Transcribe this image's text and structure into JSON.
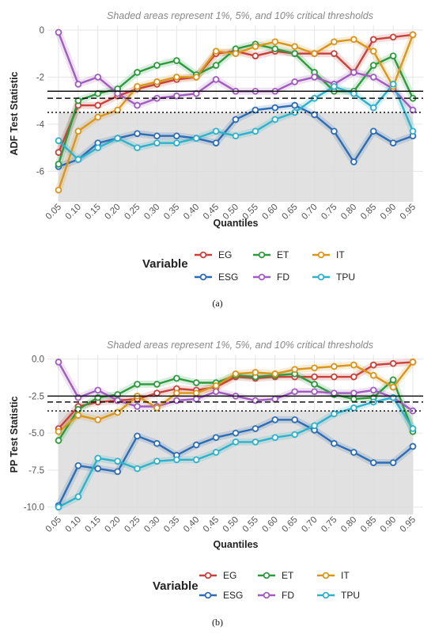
{
  "chart_data": [
    {
      "type": "line",
      "panel_label": "(a)",
      "subtitle": "Shaded areas represent 1%, 5%, and 10% critical thresholds",
      "xlabel": "Quantiles",
      "ylabel": "ADF Test Statistic",
      "x": [
        "0.05",
        "0.10",
        "0.15",
        "0.20",
        "0.25",
        "0.30",
        "0.35",
        "0.40",
        "0.45",
        "0.50",
        "0.55",
        "0.60",
        "0.65",
        "0.70",
        "0.75",
        "0.80",
        "0.85",
        "0.90",
        "0.95"
      ],
      "ylim": [
        -7.3,
        0.2
      ],
      "yticks": [
        -6,
        -4,
        -2,
        0
      ],
      "ytick_labels": [
        "-6",
        "-4",
        "-2",
        "0"
      ],
      "critical_values": [
        -2.6,
        -2.9,
        -3.5
      ],
      "shade_below": -3.5,
      "legend_title": "Variable",
      "grid": true,
      "series": [
        {
          "name": "EG",
          "color": "#C8413B",
          "values": [
            -5.2,
            -3.2,
            -3.2,
            -2.8,
            -2.5,
            -2.3,
            -2.1,
            -2.0,
            -1.0,
            -0.9,
            -1.1,
            -0.9,
            -1.0,
            -1.0,
            -1.0,
            -1.8,
            -0.4,
            -0.3,
            -0.2
          ]
        },
        {
          "name": "ESG",
          "color": "#2E6DB4",
          "values": [
            -5.8,
            -5.5,
            -4.8,
            -4.6,
            -4.4,
            -4.5,
            -4.5,
            -4.6,
            -4.8,
            -3.8,
            -3.4,
            -3.3,
            -3.2,
            -3.6,
            -4.3,
            -5.6,
            -4.3,
            -4.8,
            -4.5
          ]
        },
        {
          "name": "ET",
          "color": "#2E9A3E",
          "values": [
            -5.7,
            -3.0,
            -2.7,
            -2.5,
            -1.8,
            -1.5,
            -1.3,
            -1.9,
            -1.5,
            -0.8,
            -0.6,
            -0.8,
            -1.0,
            -1.8,
            -2.6,
            -2.6,
            -1.5,
            -1.1,
            -2.9
          ]
        },
        {
          "name": "FD",
          "color": "#A05CBF",
          "values": [
            -0.1,
            -2.3,
            -2.0,
            -2.7,
            -3.2,
            -2.9,
            -2.8,
            -2.7,
            -2.1,
            -2.6,
            -2.6,
            -2.6,
            -2.2,
            -2.0,
            -2.3,
            -1.8,
            -2.0,
            -2.5,
            -3.4
          ]
        },
        {
          "name": "IT",
          "color": "#D9961C",
          "values": [
            -6.8,
            -4.3,
            -3.7,
            -3.4,
            -2.4,
            -2.2,
            -2.0,
            -2.0,
            -0.9,
            -1.0,
            -0.7,
            -0.5,
            -0.7,
            -1.0,
            -0.5,
            -0.4,
            -0.9,
            -2.4,
            -0.2
          ]
        },
        {
          "name": "TPU",
          "color": "#2FB1C9",
          "values": [
            -4.7,
            -5.5,
            -5.0,
            -4.6,
            -5.0,
            -4.8,
            -4.8,
            -4.6,
            -4.3,
            -4.5,
            -4.3,
            -3.8,
            -3.5,
            -2.9,
            -2.4,
            -2.7,
            -3.3,
            -2.3,
            -4.3
          ]
        }
      ]
    },
    {
      "type": "line",
      "panel_label": "(b)",
      "subtitle": "Shaded areas represent 1%, 5%, and 10% critical thresholds",
      "xlabel": "Quantiles",
      "ylabel": "PP Test Statistic",
      "x": [
        "0.05",
        "0.10",
        "0.15",
        "0.20",
        "0.25",
        "0.30",
        "0.35",
        "0.40",
        "0.45",
        "0.50",
        "0.55",
        "0.60",
        "0.65",
        "0.70",
        "0.75",
        "0.80",
        "0.85",
        "0.90",
        "0.95"
      ],
      "ylim": [
        -10.5,
        0.3
      ],
      "yticks": [
        -10,
        -7.5,
        -5,
        -2.5,
        0
      ],
      "ytick_labels": [
        "-10.0",
        "-7.5",
        "-5.0",
        "-2.5",
        "0.0"
      ],
      "critical_values": [
        -2.5,
        -2.9,
        -3.5
      ],
      "shade_below": -3.5,
      "legend_title": "Variable",
      "grid": true,
      "series": [
        {
          "name": "EG",
          "color": "#C8413B",
          "values": [
            -4.7,
            -3.2,
            -2.9,
            -2.8,
            -2.7,
            -2.3,
            -2.0,
            -2.1,
            -1.9,
            -1.2,
            -1.3,
            -1.2,
            -1.2,
            -1.2,
            -1.2,
            -1.2,
            -0.4,
            -0.3,
            -0.2
          ]
        },
        {
          "name": "ESG",
          "color": "#2E6DB4",
          "values": [
            -9.9,
            -7.2,
            -7.4,
            -7.6,
            -5.2,
            -5.7,
            -6.5,
            -5.8,
            -5.3,
            -5.0,
            -4.7,
            -4.1,
            -4.1,
            -4.8,
            -5.7,
            -6.3,
            -7.0,
            -7.0,
            -5.9
          ]
        },
        {
          "name": "ET",
          "color": "#2E9A3E",
          "values": [
            -5.5,
            -3.4,
            -2.6,
            -2.4,
            -1.7,
            -1.7,
            -1.3,
            -1.6,
            -1.6,
            -1.1,
            -1.2,
            -1.1,
            -1.0,
            -1.7,
            -2.4,
            -2.7,
            -2.6,
            -1.4,
            -4.9
          ]
        },
        {
          "name": "FD",
          "color": "#A05CBF",
          "values": [
            -0.2,
            -2.6,
            -2.1,
            -2.8,
            -3.2,
            -3.2,
            -2.8,
            -2.7,
            -2.2,
            -2.5,
            -2.8,
            -2.7,
            -2.2,
            -2.2,
            -2.3,
            -2.3,
            -2.1,
            -2.6,
            -3.5
          ]
        },
        {
          "name": "IT",
          "color": "#D9961C",
          "values": [
            -4.9,
            -3.8,
            -4.1,
            -3.6,
            -2.5,
            -3.3,
            -2.3,
            -2.3,
            -1.8,
            -1.0,
            -0.9,
            -1.0,
            -0.7,
            -0.6,
            -0.5,
            -0.4,
            -1.1,
            -1.9,
            -0.2
          ]
        },
        {
          "name": "TPU",
          "color": "#2FB1C9",
          "values": [
            -10.0,
            -9.3,
            -6.7,
            -6.9,
            -7.4,
            -6.9,
            -6.8,
            -6.8,
            -6.3,
            -5.6,
            -5.6,
            -5.3,
            -5.1,
            -4.5,
            -3.7,
            -3.3,
            -2.9,
            -2.6,
            -4.7
          ]
        }
      ]
    }
  ]
}
